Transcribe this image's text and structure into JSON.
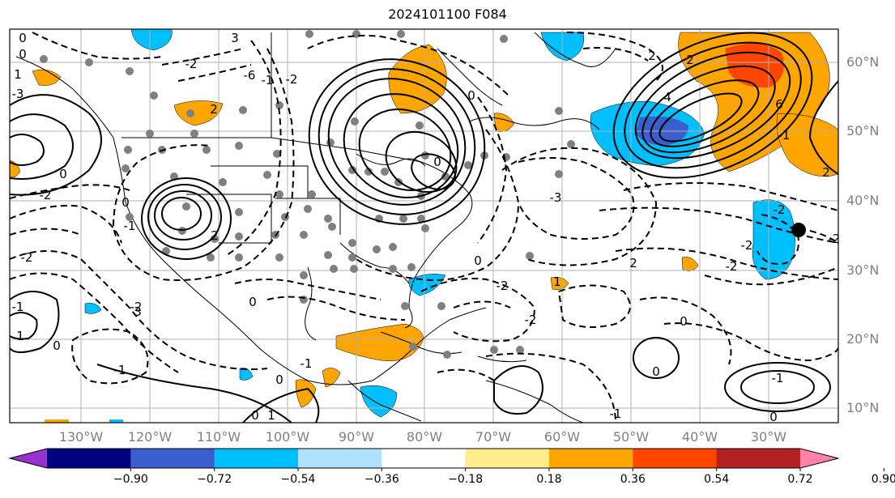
{
  "title": "2024101100 F084",
  "latitude_labels": [
    "60°N",
    "50°N",
    "40°N",
    "30°N",
    "20°N",
    "10°N"
  ],
  "longitude_labels": [
    "130°W",
    "120°W",
    "110°W",
    "100°W",
    "90°W",
    "80°W",
    "70°W",
    "60°W",
    "50°W",
    "40°W",
    "30°W"
  ],
  "colorbar": {
    "ticks": [
      "−0.90",
      "−0.72",
      "−0.54",
      "−0.36",
      "−0.18",
      "0.18",
      "0.36",
      "0.54",
      "0.72",
      "0.90"
    ],
    "colors": [
      "#9b30d0",
      "#000080",
      "#3a5fcd",
      "#00bfff",
      "#b0e2ff",
      "#ffffff",
      "#ffec8b",
      "#ffa500",
      "#ff4500",
      "#b22222",
      "#ff82ab"
    ]
  },
  "contour_labels": [
    "0",
    "3",
    "-2",
    "-6",
    "-3",
    "-1",
    "-2",
    "1",
    "0",
    "0",
    "-2",
    "-1",
    "2",
    "-1",
    "0",
    "3",
    "0",
    "-2",
    "-3",
    "1",
    "0",
    "-2",
    "0",
    "2",
    "-2",
    "0",
    "-2",
    "0",
    "-1",
    "-1",
    "-2",
    "0",
    "-2",
    "2",
    "2",
    "1",
    "0",
    "-1",
    "0",
    "1",
    "2",
    "-1",
    "0",
    "-2",
    "-2",
    "0",
    "-1",
    "2",
    "6",
    "4"
  ]
}
